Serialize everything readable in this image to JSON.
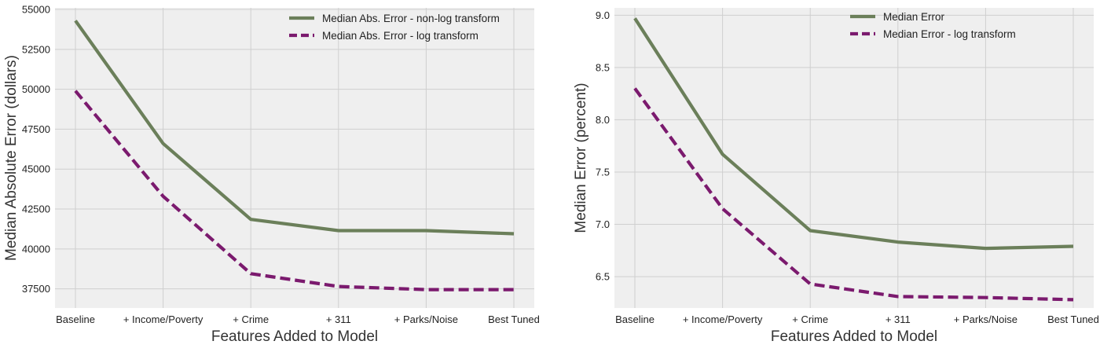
{
  "chart_data": [
    {
      "type": "line",
      "title": "",
      "xlabel": "Features Added to Model",
      "ylabel": "Median Absolute Error (dollars)",
      "categories": [
        "Baseline",
        "+ Income/Poverty",
        "+ Crime",
        "+ 311",
        "+ Parks/Noise",
        "Best Tuned"
      ],
      "yticks": [
        37500,
        40000,
        42500,
        45000,
        47500,
        50000,
        52500,
        55000
      ],
      "ylim": [
        36300,
        55100
      ],
      "grid": true,
      "legend_position": "top-right",
      "series": [
        {
          "name": "Median Abs. Error - non-log transform",
          "values": [
            54300,
            46600,
            41850,
            41150,
            41150,
            40950
          ],
          "color": "#6b7f5a",
          "style": "solid"
        },
        {
          "name": "Median Abs. Error - log transform",
          "values": [
            49900,
            43300,
            38450,
            37650,
            37450,
            37450
          ],
          "color": "#7b1a6e",
          "style": "dashed"
        }
      ]
    },
    {
      "type": "line",
      "title": "",
      "xlabel": "Features Added to Model",
      "ylabel": "Median Error (percent)",
      "categories": [
        "Baseline",
        "+ Income/Poverty",
        "+ Crime",
        "+ 311",
        "+ Parks/Noise",
        "Best Tuned"
      ],
      "yticks": [
        6.5,
        7.0,
        7.5,
        8.0,
        8.5,
        9.0
      ],
      "ylim": [
        6.2,
        9.07
      ],
      "grid": true,
      "legend_position": "top-right",
      "series": [
        {
          "name": "Median Error",
          "values": [
            8.97,
            7.67,
            6.94,
            6.83,
            6.77,
            6.79
          ],
          "color": "#6b7f5a",
          "style": "solid"
        },
        {
          "name": "Median Error - log transform",
          "values": [
            8.3,
            7.15,
            6.43,
            6.31,
            6.3,
            6.28
          ],
          "color": "#7b1a6e",
          "style": "dashed"
        }
      ]
    }
  ]
}
